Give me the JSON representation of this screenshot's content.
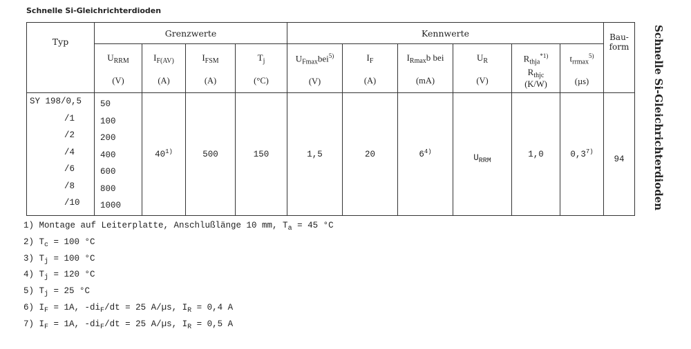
{
  "title": "Schnelle Si-Gleichrichterdioden",
  "side_title": "Schnelle Si-Gleichrichterdioden",
  "header": {
    "typ": "Typ",
    "grenzwerte": "Grenzwerte",
    "kennwerte": "Kennwerte",
    "bauform": "Bau-form",
    "urrm": {
      "s": "U",
      "sub": "RRM",
      "unit": "(V)"
    },
    "ifav": {
      "s": "I",
      "sub": "F(AV)",
      "unit": "(A)"
    },
    "ifsm": {
      "s": "I",
      "sub": "FSM",
      "unit": "(A)"
    },
    "tj": {
      "s": "T",
      "sub": "j",
      "unit": "(°C)"
    },
    "ufmax": {
      "s": "U",
      "sub": "Fmax",
      "post": "bei",
      "sup": "5)",
      "unit": "(V)"
    },
    "if": {
      "s": "I",
      "sub": "F",
      "unit": "(A)"
    },
    "irmax": {
      "s": "I",
      "sub": "Rmax",
      "post": "b bei",
      "unit": "(mA)"
    },
    "ur": {
      "s": "U",
      "sub": "R",
      "unit": "(V)"
    },
    "rth": {
      "s": "R",
      "sub": "thja",
      "sup": "*1)",
      "s2": "R",
      "sub2": "thjc",
      "unit": "(K/W)"
    },
    "trr": {
      "s": "t",
      "sub": "rrmax",
      "sup": "5)",
      "unit": "(µs)"
    }
  },
  "rows": {
    "types": [
      "SY 198/0,5",
      "/1",
      "/2",
      "/4",
      "/6",
      "/8",
      "/10"
    ],
    "urrm": [
      "50",
      "100",
      "200",
      "400",
      "600",
      "800",
      "1000"
    ],
    "ifav": "40",
    "ifav_sup": "1)",
    "ifsm": "500",
    "tj": "150",
    "ufmax": "1,5",
    "if": "20",
    "irmax": "6",
    "irmax_sup": "4)",
    "ur": "U",
    "ur_sub": "RRM",
    "rth": "1,0",
    "trr": "0,3",
    "trr_sup": "7)",
    "bauform": "94"
  },
  "footnotes": [
    {
      "a": "1) Montage auf Leiterplatte, Anschlußlänge 10 mm, T",
      "sub": "a",
      "b": " = 45 °C"
    },
    {
      "a": "2) T",
      "sub": "c",
      "b": " = 100 °C"
    },
    {
      "a": "3) T",
      "sub": "j",
      "b": " = 100 °C"
    },
    {
      "a": "4) T",
      "sub": "j",
      "b": " = 120 °C"
    },
    {
      "a": "5) T",
      "sub": "j",
      "b": " = 25 °C"
    },
    {
      "a": "6) I",
      "sub": "F",
      "b": " = 1A, -di",
      "sub2": "F",
      "c": "/dt = 25 A/µs, I",
      "sub3": "R",
      "d": " = 0,4 A"
    },
    {
      "a": "7) I",
      "sub": "F",
      "b": " = 1A, -di",
      "sub2": "F",
      "c": "/dt = 25 A/µs, I",
      "sub3": "R",
      "d": " = 0,5 A"
    }
  ]
}
